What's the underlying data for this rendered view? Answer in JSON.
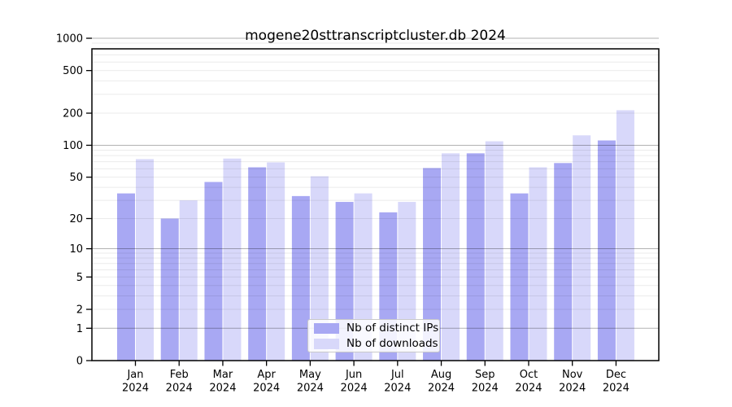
{
  "figure": {
    "title": "mogene20sttranscriptcluster.db 2024",
    "background": "#ffffff"
  },
  "chart_data": {
    "type": "bar",
    "title": "mogene20sttranscriptcluster.db 2024",
    "categories": [
      "Jan 2024",
      "Feb 2024",
      "Mar 2024",
      "Apr 2024",
      "May 2024",
      "Jun 2024",
      "Jul 2024",
      "Aug 2024",
      "Sep 2024",
      "Oct 2024",
      "Nov 2024",
      "Dec 2024"
    ],
    "series": [
      {
        "name": "Nb of distinct IPs",
        "color": "#a8a8f3",
        "values": [
          35,
          20,
          45,
          62,
          33,
          29,
          23,
          61,
          84,
          35,
          68,
          111
        ]
      },
      {
        "name": "Nb of downloads",
        "color": "#d8d8fa",
        "values": [
          74,
          30,
          75,
          69,
          51,
          35,
          29,
          84,
          109,
          62,
          124,
          213
        ]
      }
    ],
    "yscale": "log10(1+x)",
    "yticks": [
      0,
      1,
      2,
      5,
      10,
      20,
      50,
      100,
      200,
      500,
      1000
    ],
    "ylim": [
      0,
      1000
    ],
    "xlabel": "",
    "ylabel": "",
    "grid": true,
    "legend_position": "bottom-center-inside",
    "colors": {
      "grid_minor": "rgba(0,0,0,0.08)",
      "grid_major": "rgba(0,0,0,0.30)",
      "axis": "#000000"
    }
  }
}
